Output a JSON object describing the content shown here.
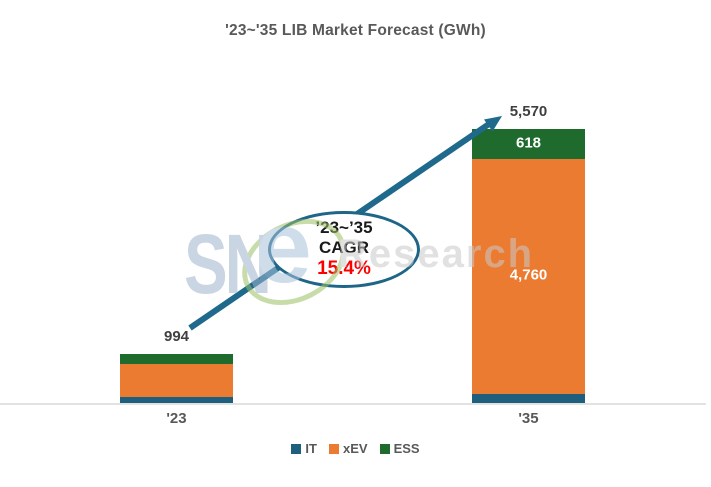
{
  "title": "'23~'35 LIB Market Forecast (GWh)",
  "watermark": {
    "sn": "SN",
    "e": "e",
    "research": "Research"
  },
  "annotation": {
    "period": "’23~’35",
    "metric": "CAGR",
    "value": "15.4%"
  },
  "legend": {
    "items": [
      {
        "label": "IT",
        "color": "#1F5F7E"
      },
      {
        "label": "xEV",
        "color": "#EC7B32"
      },
      {
        "label": "ESS",
        "color": "#1E6B2D"
      }
    ]
  },
  "colors": {
    "arrow": "#1E698C",
    "ellipse_border": "#1E6587",
    "cagr_value_text": "#FF0000",
    "title_text": "#595959"
  },
  "chart_data": {
    "type": "bar",
    "stacked": true,
    "title": "'23~'35 LIB Market Forecast (GWh)",
    "unit": "GWh",
    "categories": [
      "'23",
      "'35"
    ],
    "series": [
      {
        "name": "IT",
        "color": "#1F5F7E",
        "values": [
          120,
          192
        ],
        "data_labels": [
          "",
          ""
        ]
      },
      {
        "name": "xEV",
        "color": "#EC7B32",
        "values": [
          676,
          4760
        ],
        "data_labels": [
          "",
          "4,760"
        ]
      },
      {
        "name": "ESS",
        "color": "#1E6B2D",
        "values": [
          198,
          618
        ],
        "data_labels": [
          "",
          "618"
        ]
      }
    ],
    "totals": [
      994,
      5570
    ],
    "total_labels": [
      "994",
      "5,570"
    ],
    "ylim": [
      0,
      5570
    ],
    "grid": false,
    "legend_position": "bottom",
    "annotation_text": "’23~’35 CAGR 15.4%"
  }
}
